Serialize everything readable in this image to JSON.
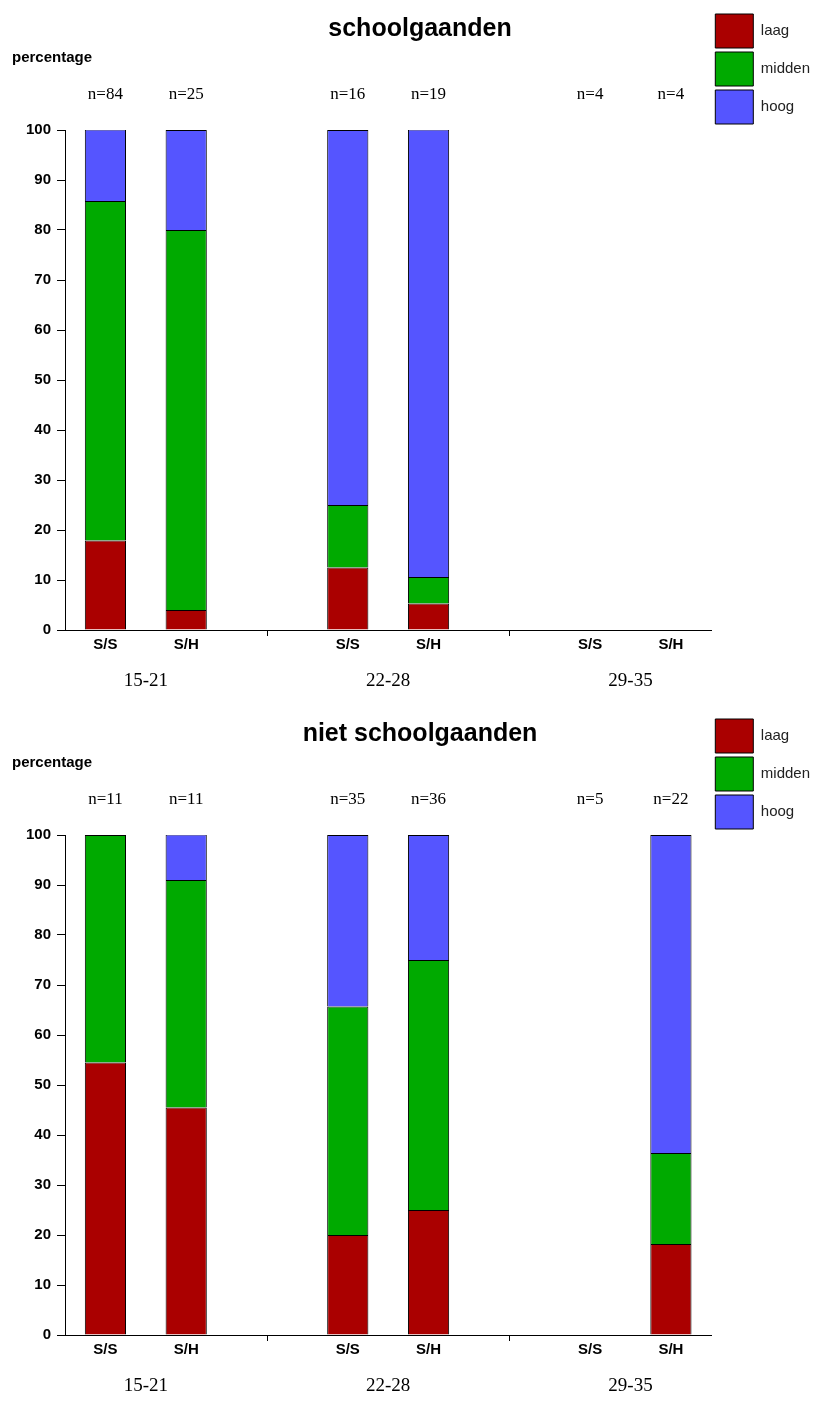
{
  "chart_data": [
    {
      "type": "bar",
      "title": "schoolgaanden",
      "ylabel": "percentage",
      "stacked": true,
      "legend": "top right",
      "categories": [
        "S/S",
        "S/H",
        null,
        "S/S",
        "S/H",
        null,
        "S/S",
        "S/H"
      ],
      "series": [
        {
          "name": "laag",
          "color": "#aa0000",
          "values": [
            17.9,
            4,
            null,
            12.5,
            5.3,
            null,
            0,
            0
          ]
        },
        {
          "name": "midden",
          "color": "#00aa00",
          "values": [
            67.9,
            76,
            null,
            12.5,
            5.3,
            null,
            0,
            0
          ]
        },
        {
          "name": "hoog",
          "color": "#5555ff",
          "values": [
            14.3,
            20,
            null,
            75,
            89.5,
            null,
            0,
            0
          ]
        }
      ],
      "annotations": [
        "n=84",
        "n=25",
        "n=16",
        "n=19",
        "n=4",
        "n=4",
        "15-21",
        "22-28",
        "29-35"
      ],
      "ylim": [
        0,
        100
      ],
      "yticks": [
        0,
        10,
        20,
        30,
        40,
        50,
        60,
        70,
        80,
        90,
        100
      ]
    },
    {
      "type": "bar",
      "title": "niet schoolgaanden",
      "ylabel": "percentage",
      "stacked": true,
      "legend": "top right",
      "categories": [
        "S/S",
        "S/H",
        null,
        "S/S",
        "S/H",
        null,
        "S/S",
        "S/H"
      ],
      "series": [
        {
          "name": "laag",
          "color": "#aa0000",
          "values": [
            54.5,
            45.5,
            null,
            20,
            25,
            null,
            0,
            18.2
          ]
        },
        {
          "name": "midden",
          "color": "#00aa00",
          "values": [
            45.5,
            45.5,
            null,
            45.7,
            50,
            null,
            0,
            18.2
          ]
        },
        {
          "name": "hoog",
          "color": "#5555ff",
          "values": [
            0,
            9.1,
            null,
            34.3,
            25,
            null,
            0,
            63.6
          ]
        }
      ],
      "annotations": [
        "n=11",
        "n=11",
        "n=35",
        "n=36",
        "n=5",
        "n=22",
        "15-21",
        "22-28",
        "29-35"
      ],
      "ylim": [
        0,
        100
      ],
      "yticks": [
        0,
        10,
        20,
        30,
        40,
        50,
        60,
        70,
        80,
        90,
        100
      ]
    }
  ]
}
